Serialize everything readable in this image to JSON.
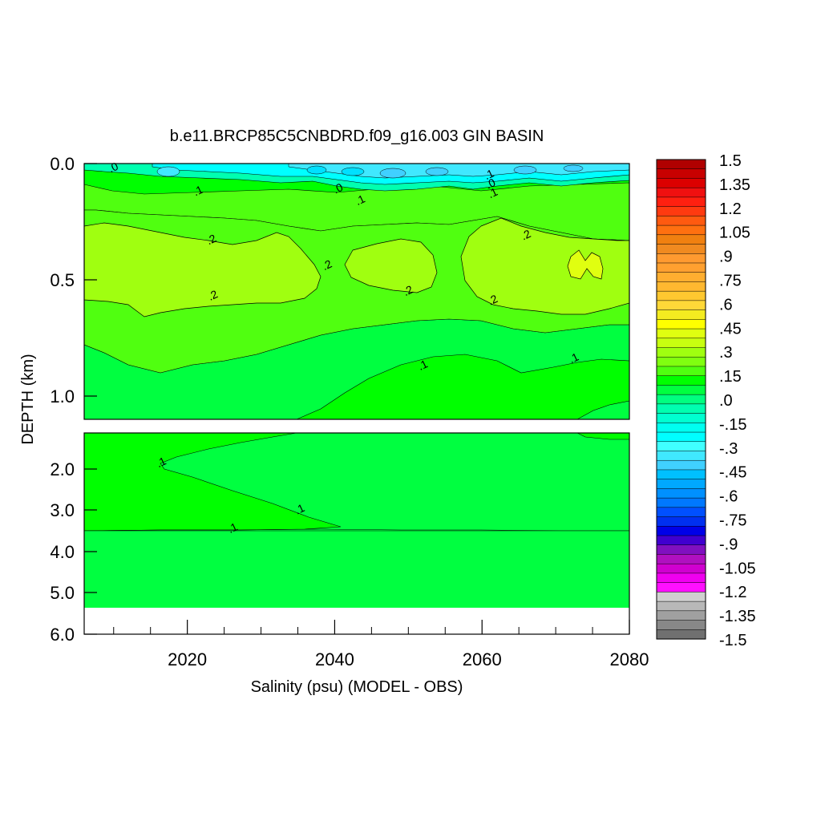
{
  "chart_data": {
    "type": "heatmap",
    "title": "b.e11.BRCP85C5CNBDRD.f09_g16.003 GIN BASIN",
    "xlabel": "Salinity (psu) (MODEL - OBS)",
    "ylabel": "DEPTH (km)",
    "x_ticks": [
      "2020",
      "2040",
      "2060",
      "2080"
    ],
    "x_range": [
      2006,
      2080
    ],
    "y_ticks_upper": [
      "0.0",
      "0.5",
      "1.0"
    ],
    "y_ticks_lower": [
      "2.0",
      "3.0",
      "4.0",
      "5.0",
      "6.0"
    ],
    "y_range_upper_km": [
      0.0,
      1.1
    ],
    "y_range_lower_km": [
      1.1,
      6.0
    ],
    "colorbar_levels": [
      "1.5",
      "1.35",
      "1.2",
      "1.05",
      ".9",
      ".75",
      ".6",
      ".45",
      ".3",
      ".15",
      ".0",
      "-.15",
      "-.3",
      "-.45",
      "-.6",
      "-.75",
      "-.9",
      "-1.05",
      "-1.2",
      "-1.35",
      "-1.5"
    ],
    "colorbar_colors": [
      "#b00000",
      "#c80000",
      "#dc0000",
      "#f01010",
      "#ff2010",
      "#ff3a10",
      "#ff5a10",
      "#ff7010",
      "#f08010",
      "#f08a20",
      "#ff9a30",
      "#ffa030",
      "#ffae30",
      "#ffb830",
      "#ffc830",
      "#ffd838",
      "#f4ec20",
      "#ffff00",
      "#e0ff10",
      "#c8ff10",
      "#a0ff10",
      "#80ff10",
      "#50ff10",
      "#00ff00",
      "#00ff40",
      "#00ff80",
      "#00ffb0",
      "#00ffd0",
      "#00fff0",
      "#00ffff",
      "#40ffff",
      "#40e8ff",
      "#40d0ff",
      "#00c0ff",
      "#00a8ff",
      "#0090ff",
      "#0078ff",
      "#0050ff",
      "#0030f0",
      "#0000e8",
      "#4000d0",
      "#8010c0",
      "#b010c0",
      "#d000d0",
      "#f000f0",
      "#ff10ff",
      "#d0d0d0",
      "#b8b8b8",
      "#a0a0a0",
      "#888888",
      "#707070"
    ],
    "field_colors": {
      "level_0": "#00ff40",
      "level_05": "#50ff10",
      "level_1": "#00ff00",
      "level_2": "#a0ff10",
      "level_3": "#e0ff10",
      "neg_1": "#00ffb0",
      "neg_2": "#00ffff",
      "neg_3": "#40e8ff"
    },
    "contour_labels": [
      {
        "text": ".0",
        "x": 2010,
        "y": 0.02
      },
      {
        "text": ".1",
        "x": 2021.5,
        "y": 0.12
      },
      {
        "text": ".0",
        "x": 2040.5,
        "y": 0.11
      },
      {
        "text": ".1",
        "x": 2043.5,
        "y": 0.16
      },
      {
        "text": ".1",
        "x": 2061,
        "y": 0.05
      },
      {
        "text": ".0",
        "x": 2061.2,
        "y": 0.09
      },
      {
        "text": ".1",
        "x": 2061.5,
        "y": 0.13
      },
      {
        "text": ".2",
        "x": 2023.3,
        "y": 0.33
      },
      {
        "text": ".2",
        "x": 2039,
        "y": 0.44
      },
      {
        "text": ".2",
        "x": 2023.5,
        "y": 0.57
      },
      {
        "text": ".2",
        "x": 2050,
        "y": 0.55
      },
      {
        "text": ".2",
        "x": 2066,
        "y": 0.31
      },
      {
        "text": ".2",
        "x": 2061.5,
        "y": 0.59
      },
      {
        "text": ".1",
        "x": 2052,
        "y": 0.87
      },
      {
        "text": ".1",
        "x": 2072.5,
        "y": 0.84
      },
      {
        "text": ".1",
        "x": 2016.5,
        "y": 1.85
      },
      {
        "text": ".1",
        "x": 2035.3,
        "y": 3.0
      },
      {
        "text": ".1",
        "x": 2026.2,
        "y": 3.45
      }
    ]
  }
}
